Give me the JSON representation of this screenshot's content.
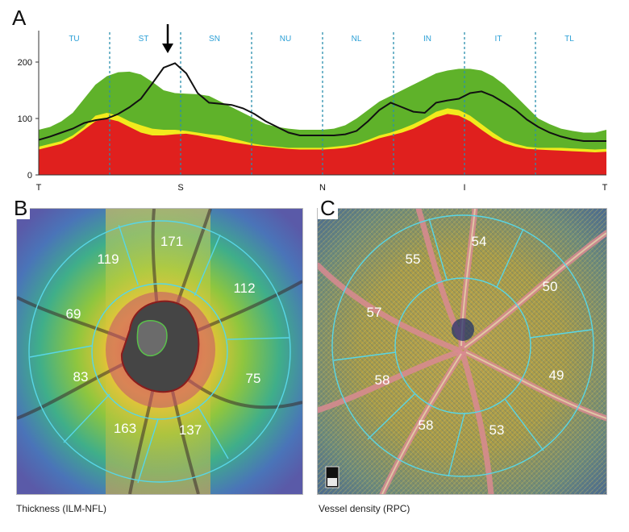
{
  "panel_a": {
    "letter": "A",
    "y_ticks": [
      "0",
      "100",
      "200"
    ],
    "x_ticks": [
      "T",
      "S",
      "N",
      "I",
      "T"
    ],
    "sectors": [
      "TU",
      "ST",
      "SN",
      "NU",
      "NL",
      "IN",
      "IT",
      "TL"
    ],
    "colors": {
      "green": "#5fb22a",
      "yellow": "#f2ea1d",
      "red": "#e0201e",
      "line": "#111111",
      "sector_label": "#2a9fd6",
      "divider": "#2a8fae"
    }
  },
  "chart_data": {
    "type": "area",
    "ylim": [
      0,
      250
    ],
    "x_ticks": [
      "T",
      "S",
      "N",
      "I",
      "T"
    ],
    "sectors": [
      "TU",
      "ST",
      "SN",
      "NU",
      "NL",
      "IN",
      "IT",
      "TL"
    ],
    "grid": false,
    "x": [
      0,
      2,
      4,
      6,
      8,
      10,
      12,
      14,
      16,
      18,
      20,
      22,
      24,
      26,
      28,
      30,
      32,
      34,
      36,
      38,
      40,
      42,
      44,
      46,
      48,
      50,
      52,
      54,
      56,
      58,
      60,
      62,
      64,
      66,
      68,
      70,
      72,
      74,
      76,
      78,
      80,
      82,
      84,
      86,
      88,
      90,
      92,
      94,
      96,
      98,
      100
    ],
    "series": [
      {
        "values": [
          80,
          85,
          95,
          110,
          135,
          160,
          175,
          182,
          183,
          178,
          165,
          150,
          145,
          144,
          143,
          140,
          130,
          120,
          110,
          100,
          90,
          85,
          82,
          80,
          80,
          80,
          82,
          88,
          100,
          115,
          130,
          140,
          150,
          160,
          170,
          180,
          185,
          188,
          188,
          185,
          175,
          160,
          140,
          120,
          100,
          90,
          82,
          78,
          75,
          75,
          80
        ]
      },
      {
        "values": [
          50,
          55,
          60,
          70,
          85,
          105,
          110,
          105,
          95,
          88,
          82,
          80,
          80,
          78,
          75,
          72,
          70,
          65,
          60,
          55,
          52,
          50,
          48,
          48,
          48,
          48,
          50,
          52,
          55,
          62,
          70,
          75,
          82,
          90,
          100,
          112,
          118,
          115,
          105,
          90,
          75,
          62,
          55,
          50,
          48,
          48,
          48,
          47,
          46,
          45,
          46
        ]
      },
      {
        "values": [
          45,
          50,
          55,
          65,
          80,
          95,
          100,
          95,
          85,
          75,
          70,
          70,
          72,
          73,
          70,
          66,
          62,
          58,
          55,
          52,
          50,
          48,
          46,
          45,
          45,
          45,
          46,
          48,
          52,
          58,
          65,
          70,
          75,
          82,
          92,
          102,
          108,
          105,
          95,
          80,
          66,
          56,
          50,
          46,
          45,
          44,
          43,
          42,
          41,
          40,
          41
        ]
      },
      {
        "values": [
          62,
          68,
          75,
          82,
          92,
          97,
          100,
          108,
          120,
          135,
          162,
          190,
          198,
          180,
          145,
          128,
          126,
          124,
          118,
          108,
          95,
          85,
          75,
          70,
          70,
          70,
          70,
          72,
          78,
          95,
          115,
          128,
          120,
          112,
          110,
          128,
          132,
          135,
          145,
          148,
          140,
          128,
          115,
          98,
          85,
          75,
          68,
          63,
          60,
          60,
          60
        ]
      }
    ]
  },
  "panel_b": {
    "letter": "B",
    "caption": "Thickness (ILM-NFL)",
    "sector_values": [
      "171",
      "119",
      "112",
      "69",
      "83",
      "75",
      "163",
      "137"
    ]
  },
  "panel_c": {
    "letter": "C",
    "caption": "Vessel density (RPC)",
    "sector_values": [
      "54",
      "55",
      "50",
      "57",
      "58",
      "49",
      "58",
      "53"
    ]
  }
}
